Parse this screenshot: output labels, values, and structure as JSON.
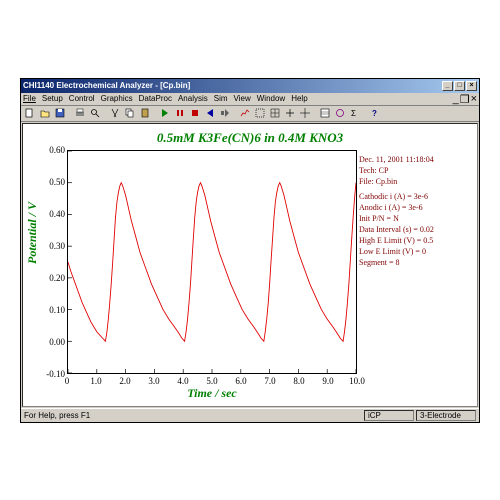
{
  "window": {
    "title": "CHI1140 Electrochemical Analyzer - [Cp.bin]",
    "min": "_",
    "max": "□",
    "close": "×"
  },
  "menu": [
    "File",
    "Setup",
    "Control",
    "Graphics",
    "DataProc",
    "Analysis",
    "Sim",
    "View",
    "Window",
    "Help"
  ],
  "chart": {
    "title": "0.5mM K3Fe(CN)6 in 0.4M KNO3",
    "title_color": "#008000",
    "ylabel": "Potential / V",
    "ylabel_color": "#008000",
    "xlabel": "Time / sec",
    "line_color": "#e00000",
    "axis_color": "#000000",
    "background": "#ffffff",
    "xlim": [
      0,
      10
    ],
    "ylim": [
      -0.1,
      0.6
    ],
    "xticks": [
      0,
      1.0,
      2.0,
      3.0,
      4.0,
      5.0,
      6.0,
      7.0,
      8.0,
      9.0,
      10.0
    ],
    "yticks": [
      -0.1,
      0.0,
      0.1,
      0.2,
      0.3,
      0.4,
      0.5,
      0.6
    ],
    "series": [
      [
        0.0,
        0.25
      ],
      [
        0.05,
        0.235
      ],
      [
        0.1,
        0.22
      ],
      [
        0.2,
        0.195
      ],
      [
        0.3,
        0.17
      ],
      [
        0.4,
        0.145
      ],
      [
        0.5,
        0.12
      ],
      [
        0.6,
        0.1
      ],
      [
        0.7,
        0.08
      ],
      [
        0.8,
        0.06
      ],
      [
        0.9,
        0.045
      ],
      [
        1.0,
        0.03
      ],
      [
        1.1,
        0.02
      ],
      [
        1.2,
        0.01
      ],
      [
        1.25,
        0.005
      ],
      [
        1.3,
        0.0
      ],
      [
        1.35,
        0.03
      ],
      [
        1.4,
        0.07
      ],
      [
        1.45,
        0.12
      ],
      [
        1.5,
        0.18
      ],
      [
        1.55,
        0.25
      ],
      [
        1.6,
        0.32
      ],
      [
        1.65,
        0.39
      ],
      [
        1.7,
        0.44
      ],
      [
        1.75,
        0.47
      ],
      [
        1.8,
        0.49
      ],
      [
        1.85,
        0.5
      ],
      [
        1.9,
        0.49
      ],
      [
        2.0,
        0.46
      ],
      [
        2.1,
        0.42
      ],
      [
        2.2,
        0.38
      ],
      [
        2.35,
        0.33
      ],
      [
        2.5,
        0.28
      ],
      [
        2.7,
        0.23
      ],
      [
        2.9,
        0.18
      ],
      [
        3.1,
        0.14
      ],
      [
        3.3,
        0.1
      ],
      [
        3.5,
        0.07
      ],
      [
        3.7,
        0.045
      ],
      [
        3.85,
        0.025
      ],
      [
        3.95,
        0.01
      ],
      [
        4.0,
        0.005
      ],
      [
        4.05,
        0.0
      ],
      [
        4.1,
        0.03
      ],
      [
        4.15,
        0.07
      ],
      [
        4.2,
        0.12
      ],
      [
        4.25,
        0.18
      ],
      [
        4.3,
        0.25
      ],
      [
        4.35,
        0.32
      ],
      [
        4.4,
        0.39
      ],
      [
        4.45,
        0.44
      ],
      [
        4.5,
        0.47
      ],
      [
        4.55,
        0.49
      ],
      [
        4.6,
        0.5
      ],
      [
        4.65,
        0.49
      ],
      [
        4.75,
        0.46
      ],
      [
        4.85,
        0.42
      ],
      [
        4.95,
        0.38
      ],
      [
        5.1,
        0.33
      ],
      [
        5.25,
        0.28
      ],
      [
        5.45,
        0.23
      ],
      [
        5.65,
        0.18
      ],
      [
        5.85,
        0.14
      ],
      [
        6.05,
        0.1
      ],
      [
        6.25,
        0.07
      ],
      [
        6.45,
        0.045
      ],
      [
        6.6,
        0.025
      ],
      [
        6.7,
        0.01
      ],
      [
        6.75,
        0.005
      ],
      [
        6.8,
        0.0
      ],
      [
        6.85,
        0.03
      ],
      [
        6.9,
        0.07
      ],
      [
        6.95,
        0.12
      ],
      [
        7.0,
        0.18
      ],
      [
        7.05,
        0.25
      ],
      [
        7.1,
        0.32
      ],
      [
        7.15,
        0.39
      ],
      [
        7.2,
        0.44
      ],
      [
        7.25,
        0.47
      ],
      [
        7.3,
        0.49
      ],
      [
        7.35,
        0.5
      ],
      [
        7.4,
        0.49
      ],
      [
        7.5,
        0.46
      ],
      [
        7.6,
        0.42
      ],
      [
        7.7,
        0.38
      ],
      [
        7.85,
        0.33
      ],
      [
        8.0,
        0.28
      ],
      [
        8.2,
        0.23
      ],
      [
        8.4,
        0.18
      ],
      [
        8.6,
        0.14
      ],
      [
        8.8,
        0.1
      ],
      [
        9.0,
        0.07
      ],
      [
        9.2,
        0.045
      ],
      [
        9.35,
        0.025
      ],
      [
        9.45,
        0.01
      ],
      [
        9.5,
        0.005
      ],
      [
        9.55,
        0.0
      ],
      [
        9.6,
        0.03
      ],
      [
        9.65,
        0.07
      ],
      [
        9.7,
        0.12
      ],
      [
        9.75,
        0.18
      ],
      [
        9.8,
        0.25
      ],
      [
        9.85,
        0.32
      ],
      [
        9.9,
        0.39
      ],
      [
        9.95,
        0.45
      ],
      [
        10.0,
        0.5
      ]
    ]
  },
  "meta": {
    "timestamp": "Dec. 11, 2001    11:18:04",
    "tech": "Tech: CP",
    "file": "File: Cp.bin",
    "cathodic": "Cathodic i (A) = 3e-6",
    "anodic": "Anodic i (A) = 3e-6",
    "init_pn": "Init P/N = N",
    "interval": "Data Interval (s) = 0.02",
    "high_e": "High E Limit (V) = 0.5",
    "low_e": "Low E Limit (V) = 0",
    "segment": "Segment = 8",
    "color": "#800000"
  },
  "status": {
    "hint": "For Help, press F1",
    "mode": "iCP",
    "electrode": "3-Electrode"
  }
}
